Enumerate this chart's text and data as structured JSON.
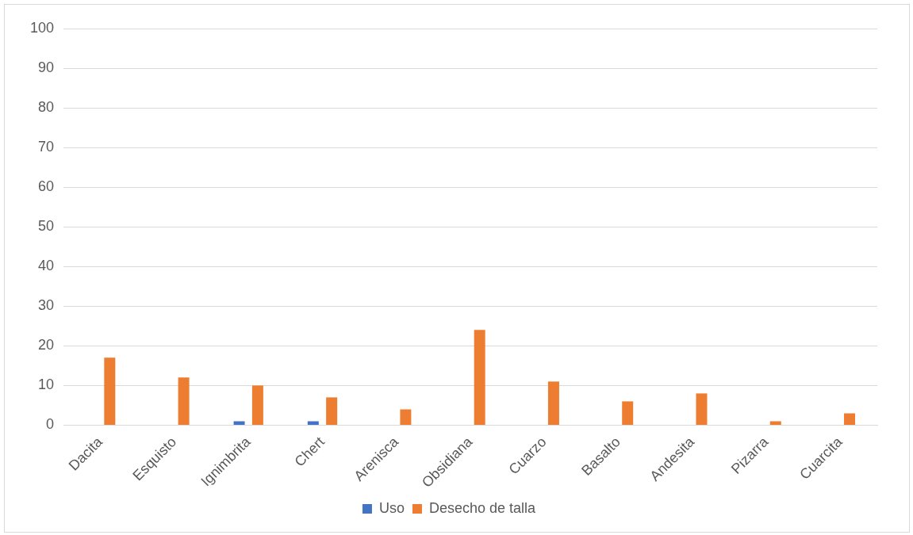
{
  "chart_data": {
    "type": "bar",
    "categories": [
      "Dacita",
      "Esquisto",
      "Ignimbrita",
      "Chert",
      "Arenisca",
      "Obsidiana",
      "Cuarzo",
      "Basalto",
      "Andesita",
      "Pizarra",
      "Cuarcita"
    ],
    "series": [
      {
        "name": "Uso",
        "color": "#4472c4",
        "values": [
          0,
          0,
          1,
          1,
          0,
          0,
          0,
          0,
          0,
          0,
          0
        ]
      },
      {
        "name": "Desecho de talla",
        "color": "#ed7d31",
        "values": [
          17,
          12,
          10,
          7,
          4,
          24,
          11,
          6,
          8,
          1,
          3
        ]
      }
    ],
    "ylim": [
      0,
      100
    ],
    "yticks": [
      0,
      10,
      20,
      30,
      40,
      50,
      60,
      70,
      80,
      90,
      100
    ],
    "grid": "y",
    "legend": "bottom"
  }
}
